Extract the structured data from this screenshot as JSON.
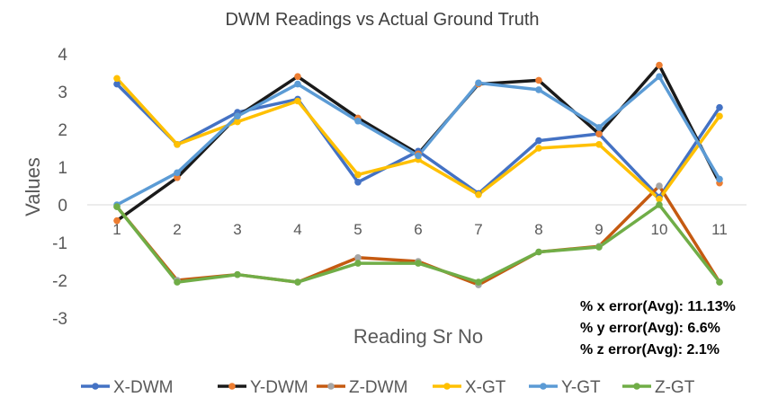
{
  "chart_data": {
    "type": "line",
    "title": "DWM Readings vs Actual Ground Truth",
    "xlabel": "Reading Sr No",
    "ylabel": "Values",
    "categories": [
      "1",
      "2",
      "3",
      "4",
      "5",
      "6",
      "7",
      "8",
      "9",
      "10",
      "11"
    ],
    "ylim": [
      -3,
      4
    ],
    "yticks": [
      -3,
      -2,
      -1,
      0,
      1,
      2,
      3,
      4
    ],
    "grid": false,
    "legend_position": "bottom",
    "series": [
      {
        "name": "X-DWM",
        "color": "#4472C4",
        "marker_color": "#4472C4",
        "values": [
          3.2,
          1.6,
          2.45,
          2.8,
          0.6,
          1.42,
          0.3,
          1.7,
          1.88,
          0.2,
          2.58
        ]
      },
      {
        "name": "Y-DWM",
        "color": "#1A1A1A",
        "marker_color": "#ED7D31",
        "values": [
          -0.42,
          0.72,
          2.35,
          3.4,
          2.3,
          1.35,
          3.2,
          3.3,
          1.88,
          3.7,
          0.58
        ]
      },
      {
        "name": "Z-DWM",
        "color": "#C55A11",
        "marker_color": "#A5A5A5",
        "values": [
          -0.05,
          -2.0,
          -1.85,
          -2.05,
          -1.4,
          -1.5,
          -2.12,
          -1.25,
          -1.1,
          0.5,
          -2.05
        ]
      },
      {
        "name": "X-GT",
        "color": "#FFC000",
        "marker_color": "#FFC000",
        "values": [
          3.35,
          1.6,
          2.2,
          2.75,
          0.8,
          1.2,
          0.27,
          1.5,
          1.6,
          0.15,
          2.35
        ]
      },
      {
        "name": "Y-GT",
        "color": "#5B9BD5",
        "marker_color": "#5B9BD5",
        "values": [
          0.0,
          0.85,
          2.35,
          3.2,
          2.22,
          1.3,
          3.23,
          3.05,
          2.05,
          3.4,
          0.68
        ]
      },
      {
        "name": "Z-GT",
        "color": "#70AD47",
        "marker_color": "#70AD47",
        "values": [
          -0.05,
          -2.05,
          -1.85,
          -2.05,
          -1.55,
          -1.55,
          -2.05,
          -1.25,
          -1.12,
          0.0,
          -2.05
        ]
      }
    ],
    "annotations": [
      "% x error(Avg): 11.13%",
      "% y error(Avg): 6.6%",
      "% z error(Avg): 2.1%"
    ]
  }
}
